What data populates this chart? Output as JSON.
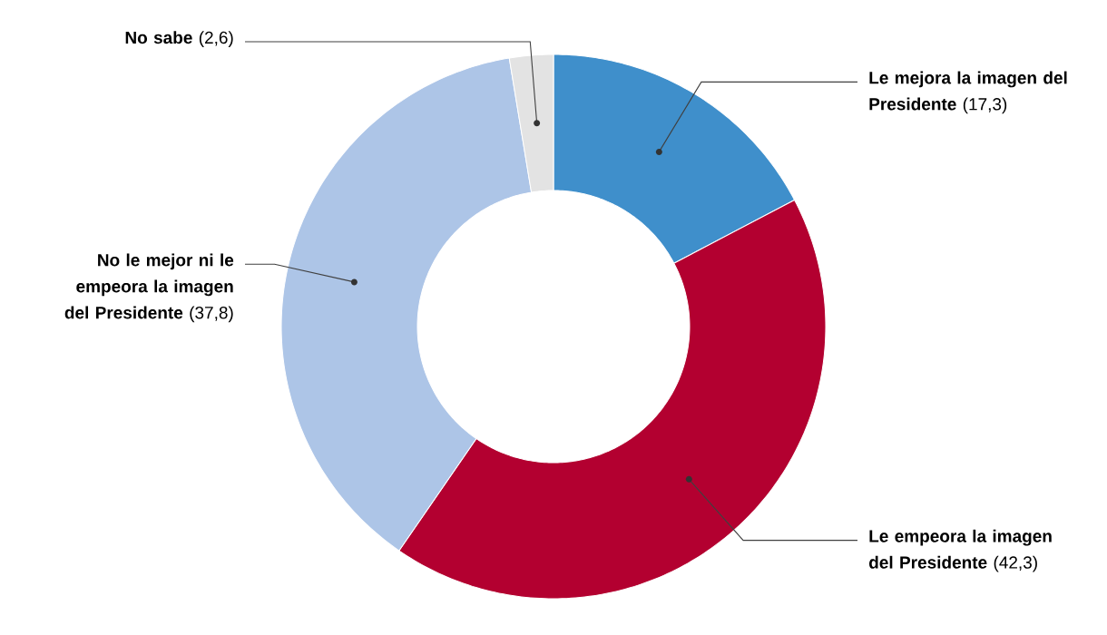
{
  "chart_data": {
    "type": "donut",
    "categories": [
      "Le mejora la imagen del Presidente",
      "Le empeora la imagen del Presidente",
      "No le mejor ni le empeora la imagen del Presidente",
      "No sabe"
    ],
    "values": [
      17.3,
      42.3,
      37.8,
      2.6
    ],
    "colors": [
      "#3f8fcb",
      "#b30030",
      "#adc5e7",
      "#e3e3e3"
    ],
    "value_labels": [
      "(17,3)",
      "(42,3)",
      "(37,8)",
      "(2,6)"
    ]
  }
}
